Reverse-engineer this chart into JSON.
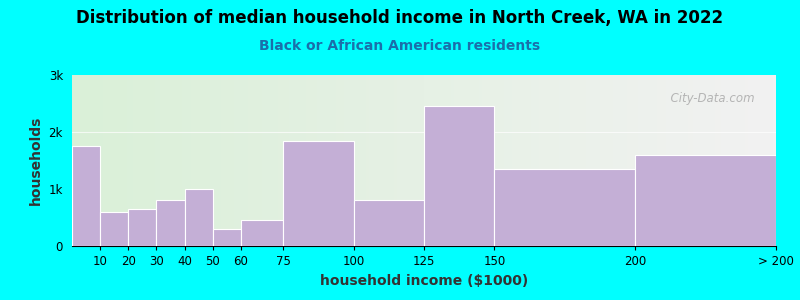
{
  "title": "Distribution of median household income in North Creek, WA in 2022",
  "subtitle": "Black or African American residents",
  "xlabel": "household income ($1000)",
  "ylabel": "households",
  "background_outer": "#00FFFF",
  "bar_color": "#c4afd6",
  "watermark": "  City-Data.com",
  "bin_edges": [
    0,
    10,
    20,
    30,
    40,
    50,
    60,
    75,
    100,
    125,
    150,
    200,
    250
  ],
  "bin_labels": [
    "10",
    "20",
    "30",
    "40",
    "50",
    "60",
    "75",
    "100",
    "125",
    "150",
    "200",
    "> 200"
  ],
  "values": [
    1750,
    600,
    650,
    800,
    1000,
    300,
    450,
    1850,
    800,
    2450,
    1350,
    1600
  ],
  "ylim": [
    0,
    3000
  ],
  "yticks": [
    0,
    1000,
    2000,
    3000
  ],
  "ytick_labels": [
    "0",
    "1k",
    "2k",
    "3k"
  ],
  "xlim": [
    0,
    250
  ],
  "xtick_positions": [
    10,
    20,
    30,
    40,
    50,
    60,
    75,
    100,
    125,
    150,
    200,
    250
  ],
  "xtick_labels": [
    "10",
    "20",
    "30",
    "40",
    "50",
    "60",
    "75",
    "100",
    "125",
    "150",
    "200",
    "> 200"
  ],
  "title_fontsize": 12,
  "subtitle_fontsize": 10,
  "axis_label_fontsize": 10
}
